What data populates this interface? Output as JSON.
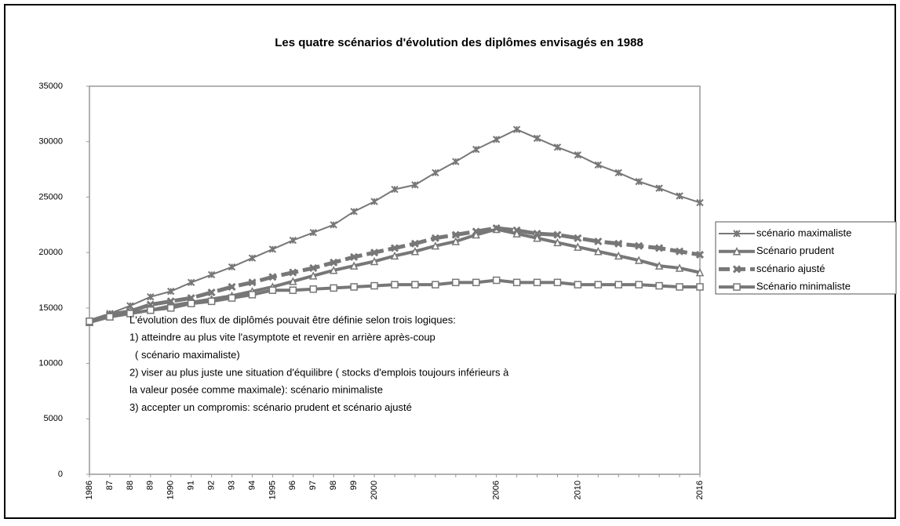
{
  "chart_data": {
    "type": "line",
    "title": "Les quatre scénarios d'évolution des diplômes envisagés en 1988",
    "categories": [
      "1986",
      "87",
      "88",
      "89",
      "1990",
      "91",
      "92",
      "93",
      "94",
      "1995",
      "96",
      "97",
      "98",
      "99",
      "2000",
      null,
      null,
      null,
      null,
      null,
      "2006",
      null,
      null,
      null,
      "2010",
      null,
      null,
      null,
      null,
      null,
      "2016"
    ],
    "series": [
      {
        "name": "scénario maximaliste",
        "color": "#777777",
        "marker": "asterisk",
        "width": 2,
        "dash": false,
        "values": [
          13800,
          14500,
          15200,
          16000,
          16500,
          17300,
          18000,
          18700,
          19500,
          20300,
          21100,
          21800,
          22500,
          23700,
          24600,
          25700,
          26100,
          27200,
          28200,
          29300,
          30200,
          31100,
          30300,
          29500,
          28800,
          27900,
          27200,
          26400,
          25800,
          25100,
          24500
        ]
      },
      {
        "name": "Scénario prudent",
        "color": "#777777",
        "marker": "triangle",
        "width": 4,
        "dash": false,
        "values": [
          13700,
          14200,
          14500,
          14800,
          15200,
          15500,
          15800,
          16100,
          16500,
          16900,
          17400,
          17900,
          18400,
          18800,
          19200,
          19700,
          20100,
          20600,
          21000,
          21600,
          22100,
          21700,
          21300,
          20900,
          20500,
          20100,
          19700,
          19300,
          18800,
          18600,
          18200
        ]
      },
      {
        "name": "scénario ajusté",
        "color": "#777777",
        "marker": "x",
        "width": 5,
        "dash": true,
        "values": [
          13800,
          14400,
          14700,
          15300,
          15600,
          15900,
          16400,
          16900,
          17300,
          17800,
          18200,
          18600,
          19100,
          19600,
          20000,
          20400,
          20800,
          21300,
          21600,
          21900,
          22200,
          22000,
          21700,
          21600,
          21300,
          21000,
          20800,
          20600,
          20400,
          20100,
          19800
        ]
      },
      {
        "name": "Scénario minimaliste",
        "color": "#777777",
        "marker": "square",
        "width": 4,
        "dash": false,
        "values": [
          13800,
          14200,
          14500,
          14800,
          15000,
          15400,
          15600,
          15900,
          16200,
          16600,
          16600,
          16700,
          16800,
          16900,
          17000,
          17100,
          17100,
          17100,
          17300,
          17300,
          17500,
          17300,
          17300,
          17300,
          17100,
          17100,
          17100,
          17100,
          17000,
          16900,
          16900
        ]
      }
    ],
    "ylim": [
      0,
      35000
    ],
    "yticks": [
      0,
      5000,
      10000,
      15000,
      20000,
      25000,
      30000,
      35000
    ],
    "annotation": [
      "L'évolution des flux de diplômés pouvait être définie selon trois logiques:",
      "1) atteindre au plus vite l'asymptote et revenir en arrière après-coup",
      "( scénario maximaliste)",
      "2) viser au plus juste une situation d'équilibre ( stocks d'emplois toujours inférieurs à",
      "la valeur posée comme maximale): scénario minimaliste",
      "3) accepter un compromis: scénario prudent et scénario ajusté"
    ],
    "legend": "right"
  }
}
